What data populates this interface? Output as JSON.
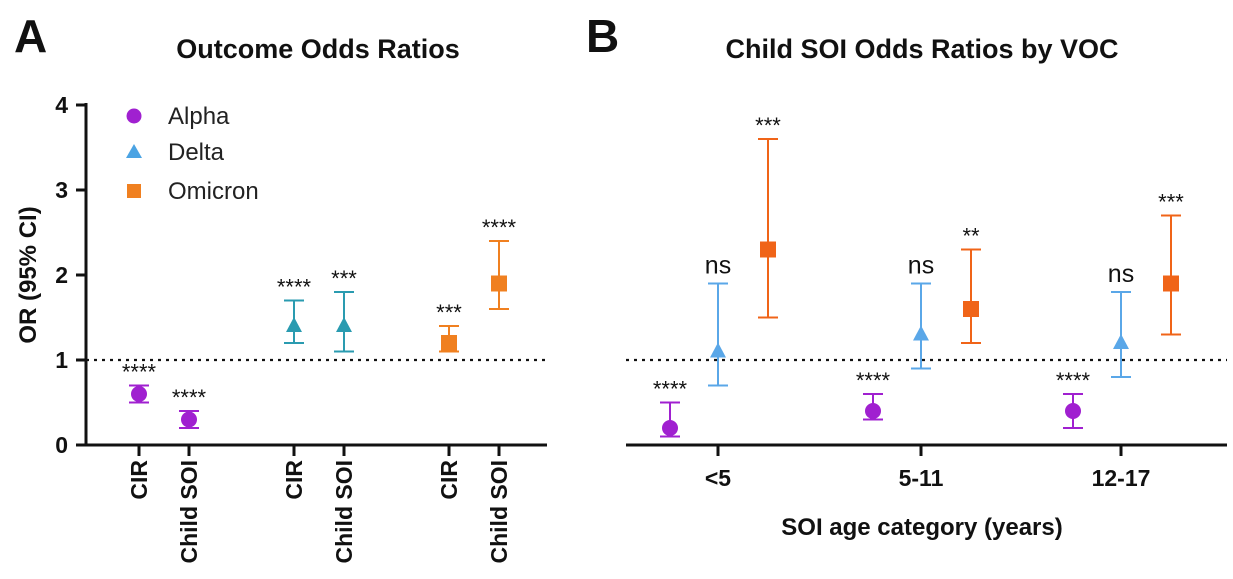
{
  "colors": {
    "alpha": "#a020d0",
    "delta_a": "#2a9bb0",
    "delta_b": "#5aa7e8",
    "omicron_a": "#f08020",
    "omicron_b": "#f06418"
  },
  "panel_a": {
    "letter": "A",
    "title": "Outcome Odds Ratios",
    "ylabel": "OR (95% CI)",
    "yticks": [
      "0",
      "1",
      "2",
      "3",
      "4"
    ],
    "legend": [
      {
        "name": "Alpha",
        "shape": "circle"
      },
      {
        "name": "Delta",
        "shape": "triangle"
      },
      {
        "name": "Omicron",
        "shape": "square"
      }
    ]
  },
  "panel_b": {
    "letter": "B",
    "title": "Child SOI Odds Ratios by VOC",
    "xlabel": "SOI age category (years)"
  },
  "chart_data": [
    {
      "type": "scatter",
      "title": "Outcome Odds Ratios",
      "ylabel": "OR (95% CI)",
      "ylim": [
        0,
        4
      ],
      "reference_line": 1,
      "categories": [
        "CIR",
        "Child SOI",
        "CIR",
        "Child SOI",
        "CIR",
        "Child SOI"
      ],
      "series": [
        {
          "name": "Alpha",
          "shape": "circle",
          "color": "#a020d0",
          "points": [
            {
              "category_index": 0,
              "or": 0.6,
              "lower": 0.5,
              "upper": 0.7,
              "sig": "****"
            },
            {
              "category_index": 1,
              "or": 0.3,
              "lower": 0.2,
              "upper": 0.4,
              "sig": "****"
            }
          ]
        },
        {
          "name": "Delta",
          "shape": "triangle",
          "color": "#2a9bb0",
          "points": [
            {
              "category_index": 2,
              "or": 1.4,
              "lower": 1.2,
              "upper": 1.7,
              "sig": "****"
            },
            {
              "category_index": 3,
              "or": 1.4,
              "lower": 1.1,
              "upper": 1.8,
              "sig": "***"
            }
          ]
        },
        {
          "name": "Omicron",
          "shape": "square",
          "color": "#f08020",
          "points": [
            {
              "category_index": 4,
              "or": 1.2,
              "lower": 1.1,
              "upper": 1.4,
              "sig": "***"
            },
            {
              "category_index": 5,
              "or": 1.9,
              "lower": 1.6,
              "upper": 2.4,
              "sig": "****"
            }
          ]
        }
      ]
    },
    {
      "type": "scatter",
      "title": "Child SOI Odds Ratios by VOC",
      "xlabel": "SOI age category (years)",
      "ylim": [
        0,
        4
      ],
      "reference_line": 1,
      "categories": [
        "<5",
        "5-11",
        "12-17"
      ],
      "series": [
        {
          "name": "Alpha",
          "shape": "circle",
          "color": "#a020d0",
          "points": [
            {
              "category_index": 0,
              "or": 0.2,
              "lower": 0.1,
              "upper": 0.5,
              "sig": "****"
            },
            {
              "category_index": 1,
              "or": 0.4,
              "lower": 0.3,
              "upper": 0.6,
              "sig": "****"
            },
            {
              "category_index": 2,
              "or": 0.4,
              "lower": 0.2,
              "upper": 0.6,
              "sig": "****"
            }
          ]
        },
        {
          "name": "Delta",
          "shape": "triangle",
          "color": "#5aa7e8",
          "points": [
            {
              "category_index": 0,
              "or": 1.1,
              "lower": 0.7,
              "upper": 1.9,
              "sig": "ns"
            },
            {
              "category_index": 1,
              "or": 1.3,
              "lower": 0.9,
              "upper": 1.9,
              "sig": "ns"
            },
            {
              "category_index": 2,
              "or": 1.2,
              "lower": 0.8,
              "upper": 1.8,
              "sig": "ns"
            }
          ]
        },
        {
          "name": "Omicron",
          "shape": "square",
          "color": "#f06418",
          "points": [
            {
              "category_index": 0,
              "or": 2.3,
              "lower": 1.5,
              "upper": 3.6,
              "sig": "***"
            },
            {
              "category_index": 1,
              "or": 1.6,
              "lower": 1.2,
              "upper": 2.3,
              "sig": "**"
            },
            {
              "category_index": 2,
              "or": 1.9,
              "lower": 1.3,
              "upper": 2.7,
              "sig": "***"
            }
          ]
        }
      ]
    }
  ]
}
